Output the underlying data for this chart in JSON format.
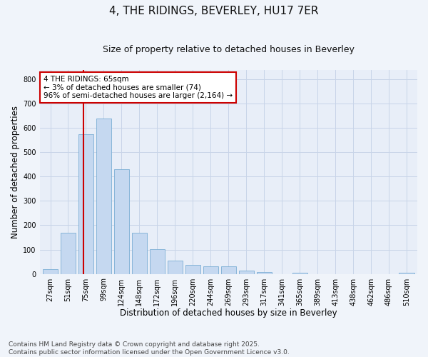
{
  "title1": "4, THE RIDINGS, BEVERLEY, HU17 7ER",
  "title2": "Size of property relative to detached houses in Beverley",
  "xlabel": "Distribution of detached houses by size in Beverley",
  "ylabel": "Number of detached properties",
  "categories": [
    "27sqm",
    "51sqm",
    "75sqm",
    "99sqm",
    "124sqm",
    "148sqm",
    "172sqm",
    "196sqm",
    "220sqm",
    "244sqm",
    "269sqm",
    "293sqm",
    "317sqm",
    "341sqm",
    "365sqm",
    "389sqm",
    "413sqm",
    "438sqm",
    "462sqm",
    "486sqm",
    "510sqm"
  ],
  "values": [
    20,
    170,
    575,
    640,
    430,
    170,
    103,
    55,
    38,
    30,
    30,
    13,
    8,
    0,
    5,
    0,
    0,
    0,
    0,
    0,
    5
  ],
  "bar_color": "#c5d8f0",
  "bar_edge_color": "#7aaed4",
  "vline_color": "#cc0000",
  "vline_pos": 1.85,
  "annotation_text": "4 THE RIDINGS: 65sqm\n← 3% of detached houses are smaller (74)\n96% of semi-detached houses are larger (2,164) →",
  "annotation_box_color": "#cc0000",
  "ylim": [
    0,
    840
  ],
  "yticks": [
    0,
    100,
    200,
    300,
    400,
    500,
    600,
    700,
    800
  ],
  "grid_color": "#c8d4e8",
  "bg_color": "#e8eef8",
  "plot_bg_color": "#e8eef8",
  "fig_bg_color": "#f0f4fa",
  "footer_text": "Contains HM Land Registry data © Crown copyright and database right 2025.\nContains public sector information licensed under the Open Government Licence v3.0.",
  "title1_fontsize": 11,
  "title2_fontsize": 9,
  "xlabel_fontsize": 8.5,
  "ylabel_fontsize": 8.5,
  "tick_fontsize": 7,
  "annotation_fontsize": 7.5,
  "footer_fontsize": 6.5
}
